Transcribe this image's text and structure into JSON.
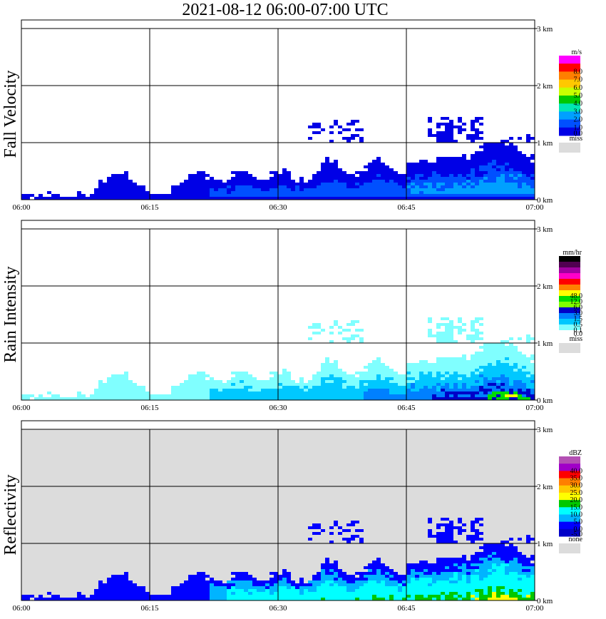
{
  "title": "2021-08-12   06:00-07:00 UTC",
  "x_ticks": [
    "06:00",
    "06:15",
    "06:30",
    "06:45",
    "07:00"
  ],
  "y_ticks": [
    "0 km",
    "1 km",
    "2 km",
    "3 km"
  ],
  "colors": {
    "background": "#ffffff",
    "missing": "#dcdcdc",
    "grid": "#000000"
  },
  "chart_data": [
    {
      "type": "heatmap",
      "ylabel": "Fall Velocity",
      "x_range": [
        "06:00",
        "07:00"
      ],
      "y_range_km": [
        0,
        3
      ],
      "grid": true,
      "background": "white",
      "colorbar": {
        "unit": "m/s",
        "labels": [
          "8.0",
          "7.0",
          "6.0",
          "5.0",
          "4.0",
          "3.0",
          "2.0",
          "1.0",
          "0.0"
        ],
        "colors": [
          "#ff00ff",
          "#ff0000",
          "#ff7f00",
          "#ffc800",
          "#c8ff00",
          "#00c800",
          "#00e6b4",
          "#00a0ff",
          "#0050ff",
          "#0000e6"
        ],
        "missing_label": "miss"
      },
      "layers": [
        {
          "color": "#0000e6",
          "min_km": 0.0,
          "thresh": 0.0,
          "start_min": 8
        },
        {
          "color": "#0050ff",
          "min_km": 0.1,
          "thresh": 0.4,
          "start_min": 22
        },
        {
          "color": "#00a0ff",
          "min_km": 0.15,
          "thresh": 0.6,
          "start_min": 45
        }
      ]
    },
    {
      "type": "heatmap",
      "ylabel": "Rain Intensity",
      "x_range": [
        "06:00",
        "07:00"
      ],
      "y_range_km": [
        0,
        3
      ],
      "grid": true,
      "background": "white",
      "colorbar": {
        "unit": "mm/hr",
        "labels": [
          "48.0",
          "12.0",
          "6.0",
          "3.0",
          "1.5",
          "0.5",
          "0.1",
          "0.0"
        ],
        "colors": [
          "#000000",
          "#500050",
          "#a000a0",
          "#ff00c8",
          "#ff0000",
          "#ff8000",
          "#ffff00",
          "#00dc00",
          "#80ff00",
          "#0000c8",
          "#0080ff",
          "#00c8ff",
          "#80ffff",
          "#ffffff"
        ],
        "missing_label": "miss"
      },
      "layers": [
        {
          "color": "#80ffff",
          "min_km": 0.0,
          "thresh": 0.0,
          "start_min": 8
        },
        {
          "color": "#00c8ff",
          "min_km": 0.05,
          "thresh": 0.35,
          "start_min": 22
        },
        {
          "color": "#0080ff",
          "min_km": 0.05,
          "thresh": 0.6,
          "start_min": 40
        },
        {
          "color": "#0000c8",
          "min_km": 0.02,
          "thresh": 0.78,
          "start_min": 48
        },
        {
          "color": "#00dc00",
          "min_km": 0.05,
          "thresh": 0.9,
          "start_min": 54
        },
        {
          "color": "#ffff00",
          "min_km": 0.03,
          "thresh": 0.96,
          "start_min": 56
        }
      ]
    },
    {
      "type": "heatmap",
      "ylabel": "Reflectivity",
      "x_range": [
        "06:00",
        "07:00"
      ],
      "y_range_km": [
        0,
        3
      ],
      "grid": true,
      "background": "gray",
      "colorbar": {
        "unit": "dBZ",
        "labels": [
          "40.0",
          "35.0",
          "30.0",
          "25.0",
          "20.0",
          "15.0",
          "10.0",
          "5.0",
          "0.0",
          "-5.0"
        ],
        "colors": [
          "#b450b4",
          "#a000c8",
          "#ff0000",
          "#ff7f00",
          "#ffc800",
          "#ffff00",
          "#00c800",
          "#00ffff",
          "#00b4ff",
          "#0000ff",
          "#0000c8"
        ],
        "missing_label": "none"
      },
      "layers": [
        {
          "color": "#0000ff",
          "min_km": 0.0,
          "thresh": 0.0,
          "start_min": 8
        },
        {
          "color": "#00b4ff",
          "min_km": 0.03,
          "thresh": 0.25,
          "start_min": 22
        },
        {
          "color": "#00ffff",
          "min_km": 0.03,
          "thresh": 0.45,
          "start_min": 24
        },
        {
          "color": "#00c800",
          "min_km": 0.05,
          "thresh": 0.8,
          "start_min": 35
        },
        {
          "color": "#ffff00",
          "min_km": 0.05,
          "thresh": 0.92,
          "start_min": 52
        }
      ]
    }
  ]
}
